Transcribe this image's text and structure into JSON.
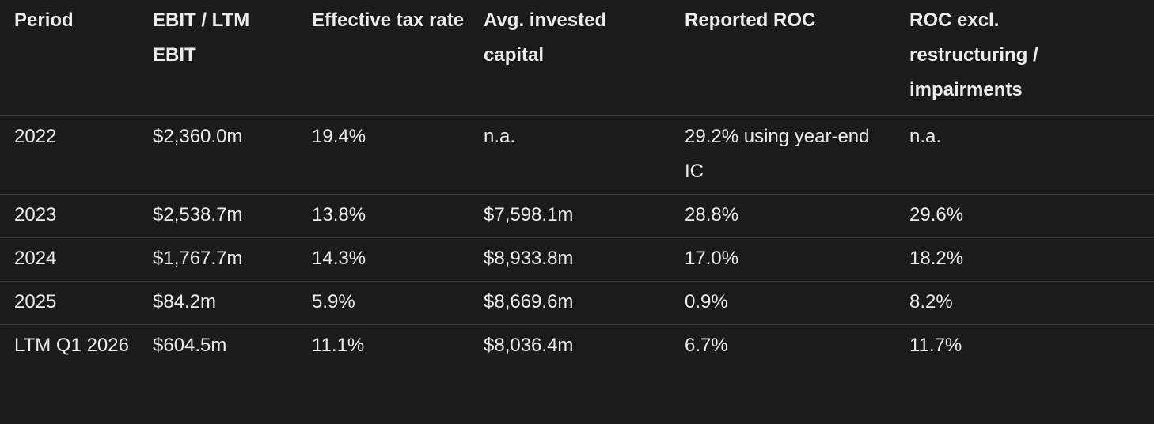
{
  "table": {
    "headers": [
      "Period",
      "EBIT / LTM EBIT",
      "Effective tax rate",
      "Avg. invested capital",
      "Reported ROC",
      "ROC excl. restructuring / impairments"
    ],
    "rows": [
      [
        "2022",
        "$2,360.0m",
        "19.4%",
        "n.a.",
        "29.2% using year-end IC",
        "n.a."
      ],
      [
        "2023",
        "$2,538.7m",
        "13.8%",
        "$7,598.1m",
        "28.8%",
        "29.6%"
      ],
      [
        "2024",
        "$1,767.7m",
        "14.3%",
        "$8,933.8m",
        "17.0%",
        "18.2%"
      ],
      [
        "2025",
        "$84.2m",
        "5.9%",
        "$8,669.6m",
        "0.9%",
        "8.2%"
      ],
      [
        "LTM Q1 2026",
        "$604.5m",
        "11.1%",
        "$8,036.4m",
        "6.7%",
        "11.7%"
      ]
    ]
  }
}
